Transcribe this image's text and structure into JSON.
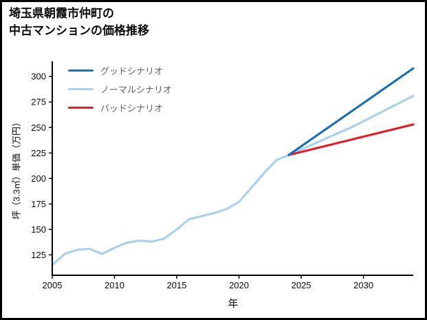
{
  "header": {
    "title_lines": [
      "埼玉県朝霞市仲町の",
      "中古マンションの価格推移"
    ]
  },
  "chart_data": {
    "type": "line",
    "title": "埼玉県朝霞市仲町の中古マンションの価格推移",
    "xlabel": "年",
    "ylabel": "坪（3.3㎡）単価（万円）",
    "xlim": [
      2005,
      2034
    ],
    "ylim": [
      105,
      315
    ],
    "xticks": [
      2005,
      2010,
      2015,
      2020,
      2025,
      2030
    ],
    "yticks": [
      125,
      150,
      175,
      200,
      225,
      250,
      275,
      300
    ],
    "grid": false,
    "legend_position": "top-left-inside",
    "legend": [
      {
        "label": "グッドシナリオ",
        "color": "#1a6fb5"
      },
      {
        "label": "ノーマルシナリオ",
        "color": "#a8d1f0"
      },
      {
        "label": "バッドシナリオ",
        "color": "#e31e24"
      }
    ],
    "series": [
      {
        "id": "history",
        "name": "ノーマルシナリオ",
        "color": "#a8d1f0",
        "width": 3.2,
        "x": [
          2005,
          2006,
          2007,
          2008,
          2009,
          2010,
          2011,
          2012,
          2013,
          2014,
          2015,
          2016,
          2017,
          2018,
          2019,
          2020,
          2021,
          2022,
          2023,
          2024
        ],
        "y": [
          115,
          126,
          130,
          131,
          126,
          132,
          137,
          139,
          138,
          141,
          150,
          160,
          163,
          166,
          170,
          177,
          191,
          205,
          218,
          223
        ]
      },
      {
        "id": "normal-projection",
        "name": "ノーマルシナリオ",
        "color": "#a8d1f0",
        "width": 3.2,
        "x": [
          2024,
          2029,
          2034
        ],
        "y": [
          223,
          250,
          281
        ]
      },
      {
        "id": "bad-projection",
        "name": "バッドシナリオ",
        "color": "#e31e24",
        "width": 3.2,
        "x": [
          2024,
          2034
        ],
        "y": [
          223,
          253
        ]
      },
      {
        "id": "good-projection",
        "name": "グッドシナリオ",
        "color": "#1a6fb5",
        "width": 3.2,
        "x": [
          2024,
          2034
        ],
        "y": [
          223,
          308
        ]
      }
    ]
  }
}
